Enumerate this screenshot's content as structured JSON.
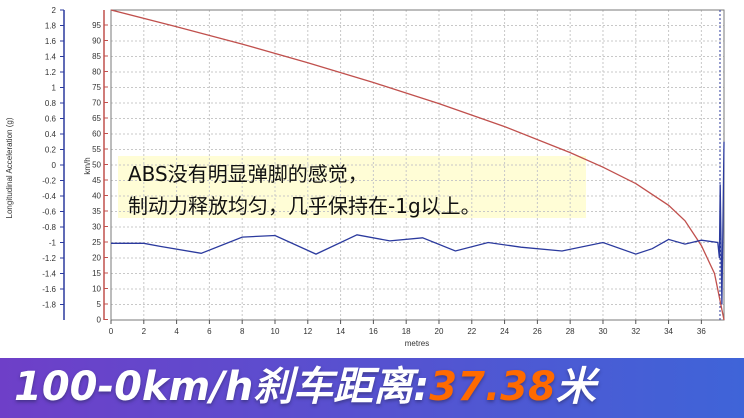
{
  "colors": {
    "speed": "#c0504d",
    "accel": "#2b3a9e",
    "grid": "#c8c8c8",
    "banner_left": "#6e3fc8",
    "banner_right": "#3f64d8",
    "value": "#ff6a00",
    "annot_bg": "#fffdd6"
  },
  "chart_data": {
    "type": "line",
    "xlabel": "metres",
    "x_ticks": [
      0,
      2,
      4,
      6,
      8,
      10,
      12,
      14,
      16,
      18,
      20,
      22,
      24,
      26,
      28,
      30,
      32,
      34,
      36
    ],
    "xlim": [
      0,
      37.38
    ],
    "left_axis": {
      "label": "Longitudinal Acceleration (g)",
      "ticks": [
        "2",
        "1.8",
        "1.6",
        "1.4",
        "1.2",
        "1",
        "0.8",
        "0.6",
        "0.4",
        "0.2",
        "0",
        "-0.2",
        "-0.4",
        "-0.6",
        "-0.8",
        "-1",
        "-1.2",
        "-1.4",
        "-1.6",
        "-1.8"
      ],
      "ylim": [
        -2,
        2
      ]
    },
    "right_axis": {
      "label": "km/h",
      "ticks": [
        "95",
        "90",
        "85",
        "80",
        "75",
        "70",
        "65",
        "60",
        "55",
        "50",
        "45",
        "40",
        "35",
        "30",
        "25",
        "20",
        "15",
        "10",
        "5",
        "0"
      ],
      "ylim": [
        0,
        100
      ]
    },
    "series": [
      {
        "axis": "right",
        "x": [
          0,
          4,
          8,
          12,
          16,
          20,
          24,
          28,
          30,
          32,
          34,
          35,
          36,
          36.8,
          37.38
        ],
        "y": [
          100,
          94.6,
          89.0,
          83.0,
          76.6,
          69.8,
          62.4,
          54.0,
          49.3,
          44.0,
          37.0,
          32.0,
          24.0,
          15.0,
          0
        ]
      },
      {
        "axis": "left",
        "x": [
          0,
          2,
          3,
          5.5,
          8,
          10,
          12.5,
          15,
          17,
          19,
          21,
          23,
          25,
          27.5,
          30,
          32,
          33,
          34,
          35,
          36,
          37,
          37.1,
          37.15,
          37.25,
          37.38
        ],
        "y": [
          -1.01,
          -1.01,
          -1.05,
          -1.14,
          -0.93,
          -0.91,
          -1.15,
          -0.9,
          -0.98,
          -0.94,
          -1.11,
          -1.0,
          -1.06,
          -1.11,
          -1.0,
          -1.15,
          -1.08,
          -0.96,
          -1.02,
          -0.97,
          -1.0,
          -1.2,
          -0.25,
          -1.8,
          0.3
        ]
      }
    ]
  },
  "annotation": {
    "line1": "ABS没有明显弹脚的感觉，",
    "line2": "制动力释放均匀，几乎保持在-1g以上。"
  },
  "banner": {
    "prefix": "100-0km/h刹车距离:",
    "value": "37.38",
    "unit": "米"
  }
}
